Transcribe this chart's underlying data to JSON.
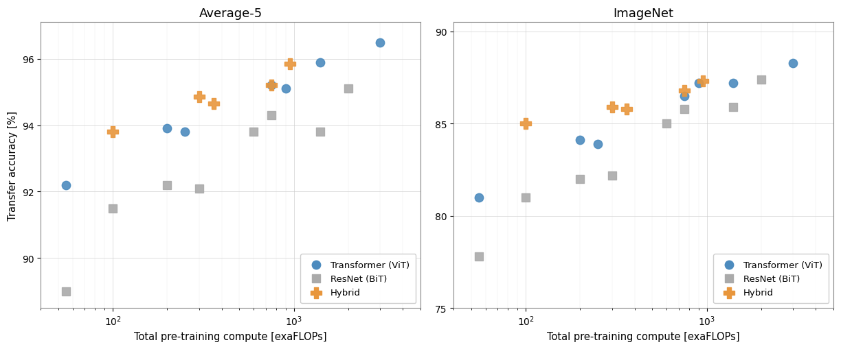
{
  "avg5": {
    "vit": {
      "x": [
        55,
        200,
        250,
        750,
        900,
        1400,
        3000
      ],
      "y": [
        92.2,
        93.9,
        93.8,
        95.2,
        95.1,
        95.9,
        96.5
      ]
    },
    "resnet": {
      "x": [
        55,
        100,
        200,
        300,
        600,
        750,
        1400,
        2000
      ],
      "y": [
        89.0,
        91.5,
        92.2,
        92.1,
        93.8,
        94.3,
        93.8,
        95.1
      ]
    },
    "hybrid": {
      "x": [
        100,
        300,
        360,
        750,
        950
      ],
      "y": [
        93.8,
        94.85,
        94.65,
        95.2,
        95.85
      ]
    },
    "ylim": [
      88.5,
      97.1
    ],
    "yticks": [
      90,
      92,
      94,
      96
    ],
    "title": "Average-5"
  },
  "imagenet": {
    "vit": {
      "x": [
        55,
        200,
        250,
        750,
        900,
        1400,
        3000
      ],
      "y": [
        81.0,
        84.1,
        83.9,
        86.5,
        87.2,
        87.2,
        88.3
      ]
    },
    "resnet": {
      "x": [
        55,
        100,
        200,
        300,
        600,
        750,
        1400,
        2000
      ],
      "y": [
        77.8,
        81.0,
        82.0,
        82.2,
        85.0,
        85.8,
        85.9,
        87.4
      ]
    },
    "hybrid": {
      "x": [
        100,
        300,
        360,
        750,
        950
      ],
      "y": [
        85.0,
        85.9,
        85.8,
        86.8,
        87.3
      ]
    },
    "ylim": [
      75.0,
      90.5
    ],
    "yticks": [
      75,
      80,
      85,
      90
    ],
    "title": "ImageNet"
  },
  "xlabel": "Total pre-training compute [exaFLOPs]",
  "ylabel": "Transfer accuracy [%]",
  "xlim": [
    40,
    5000
  ],
  "vit_color": "#4C8BBE",
  "resnet_color": "#AAAAAA",
  "hybrid_color": "#E8963C",
  "legend_labels": [
    "Transformer (ViT)",
    "ResNet (BiT)",
    "Hybrid"
  ],
  "marker_size_circle": 80,
  "marker_size_square": 65,
  "marker_size_cross": 120
}
